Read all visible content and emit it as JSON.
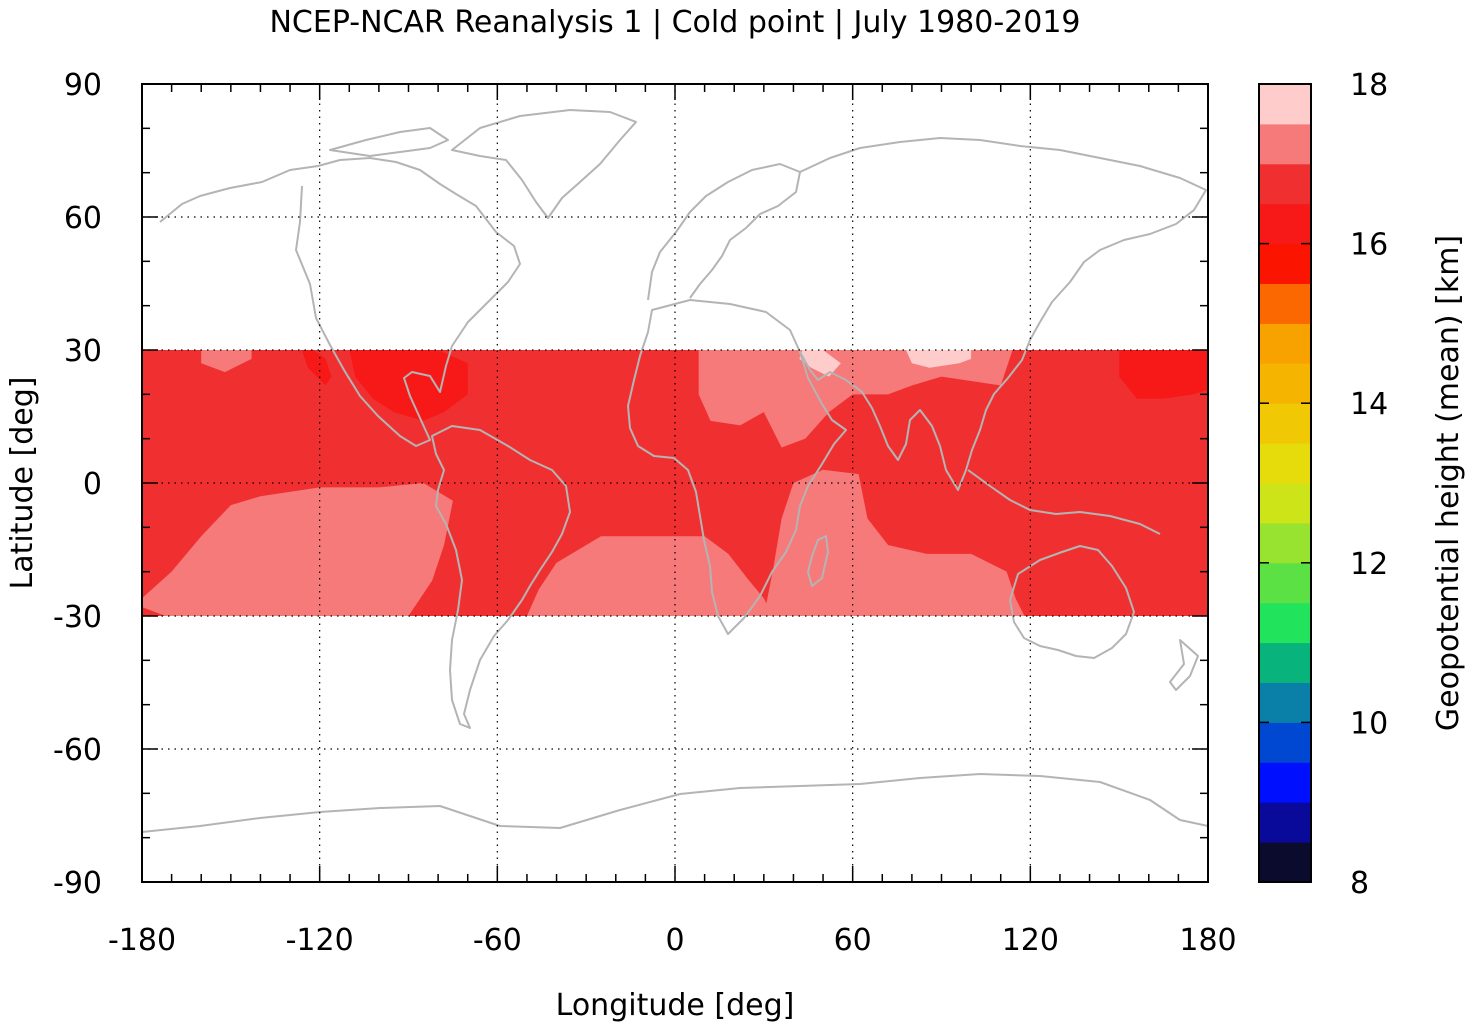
{
  "chart_data": {
    "type": "heatmap",
    "title": "NCEP-NCAR Reanalysis 1 | Cold point | July 1980-2019",
    "xlabel": "Longitude [deg]",
    "ylabel": "Latitude [deg]",
    "xlim": [
      -180,
      180
    ],
    "ylim": [
      -90,
      90
    ],
    "x_ticks": [
      "-180",
      "-120",
      "-60",
      "0",
      "60",
      "120",
      "180"
    ],
    "y_ticks": [
      "90",
      "60",
      "30",
      "0",
      "-30",
      "-60",
      "-90"
    ],
    "grid": true,
    "colorbar": {
      "label": "Geopotential height (mean) [km]",
      "range": [
        8,
        18
      ],
      "ticks": [
        "8",
        "10",
        "12",
        "14",
        "16",
        "18"
      ],
      "levels": [
        {
          "from": 8.0,
          "to": 8.5,
          "color": "#0b0b2e"
        },
        {
          "from": 8.5,
          "to": 9.0,
          "color": "#090a9a"
        },
        {
          "from": 9.0,
          "to": 9.5,
          "color": "#0010ff"
        },
        {
          "from": 9.5,
          "to": 10.0,
          "color": "#0047d1"
        },
        {
          "from": 10.0,
          "to": 10.5,
          "color": "#0a7fa8"
        },
        {
          "from": 10.5,
          "to": 11.0,
          "color": "#09b37c"
        },
        {
          "from": 11.0,
          "to": 11.5,
          "color": "#21e45c"
        },
        {
          "from": 11.5,
          "to": 12.0,
          "color": "#5be144"
        },
        {
          "from": 12.0,
          "to": 12.5,
          "color": "#98e230"
        },
        {
          "from": 12.5,
          "to": 13.0,
          "color": "#cce418"
        },
        {
          "from": 13.0,
          "to": 13.5,
          "color": "#e6db0b"
        },
        {
          "from": 13.5,
          "to": 14.0,
          "color": "#f1c804"
        },
        {
          "from": 14.0,
          "to": 14.5,
          "color": "#f5b400"
        },
        {
          "from": 14.5,
          "to": 15.0,
          "color": "#f8a200"
        },
        {
          "from": 15.0,
          "to": 15.5,
          "color": "#fb6700"
        },
        {
          "from": 15.5,
          "to": 16.0,
          "color": "#fb1500"
        },
        {
          "from": 16.0,
          "to": 16.5,
          "color": "#f71818"
        },
        {
          "from": 16.5,
          "to": 17.0,
          "color": "#f03030"
        },
        {
          "from": 17.0,
          "to": 17.5,
          "color": "#f67a7a"
        },
        {
          "from": 17.5,
          "to": 18.0,
          "color": "#ffcccc"
        }
      ]
    },
    "data_domain": {
      "lat_range": [
        -30,
        30
      ],
      "lon_range": [
        -180,
        180
      ]
    },
    "regions": [
      {
        "name": "background band",
        "value": 16.75,
        "lon": [
          -180,
          180
        ],
        "lat": [
          -30,
          30
        ]
      },
      {
        "name": "South Pacific",
        "value": 17.25,
        "polygon": [
          [
            -180,
            -26
          ],
          [
            -170,
            -20
          ],
          [
            -160,
            -12
          ],
          [
            -150,
            -5
          ],
          [
            -140,
            -3
          ],
          [
            -120,
            -1
          ],
          [
            -100,
            -1
          ],
          [
            -85,
            0
          ],
          [
            -75,
            -4
          ],
          [
            -78,
            -14
          ],
          [
            -82,
            -22
          ],
          [
            -90,
            -30
          ],
          [
            -172,
            -30
          ],
          [
            -180,
            -28
          ]
        ]
      },
      {
        "name": "South Atlantic",
        "value": 17.25,
        "polygon": [
          [
            -50,
            -30
          ],
          [
            -46,
            -24
          ],
          [
            -40,
            -18
          ],
          [
            -25,
            -12
          ],
          [
            -10,
            -12
          ],
          [
            10,
            -12
          ],
          [
            18,
            -16
          ],
          [
            25,
            -22
          ],
          [
            30,
            -26
          ],
          [
            33,
            -30
          ]
        ]
      },
      {
        "name": "Indian Ocean",
        "value": 17.25,
        "polygon": [
          [
            30,
            -30
          ],
          [
            33,
            -20
          ],
          [
            36,
            -8
          ],
          [
            40,
            0
          ],
          [
            50,
            3
          ],
          [
            62,
            2
          ],
          [
            65,
            -8
          ],
          [
            72,
            -14
          ],
          [
            85,
            -16
          ],
          [
            100,
            -16
          ],
          [
            112,
            -20
          ],
          [
            115,
            -26
          ],
          [
            118,
            -30
          ]
        ]
      },
      {
        "name": "North Africa / Asia",
        "value": 17.25,
        "polygon": [
          [
            8,
            30
          ],
          [
            8,
            20
          ],
          [
            12,
            14
          ],
          [
            22,
            13
          ],
          [
            30,
            16
          ],
          [
            36,
            8
          ],
          [
            44,
            10
          ],
          [
            52,
            16
          ],
          [
            60,
            20
          ],
          [
            72,
            20
          ],
          [
            80,
            22
          ],
          [
            90,
            24
          ],
          [
            100,
            23
          ],
          [
            110,
            22
          ],
          [
            112,
            26
          ],
          [
            114,
            30
          ]
        ]
      },
      {
        "name": "Tibet",
        "value": 17.75,
        "polygon": [
          [
            78,
            30
          ],
          [
            80,
            27
          ],
          [
            86,
            26
          ],
          [
            96,
            27
          ],
          [
            100,
            28
          ],
          [
            100,
            30
          ]
        ]
      },
      {
        "name": "Arabia",
        "value": 17.75,
        "polygon": [
          [
            42,
            28
          ],
          [
            46,
            26
          ],
          [
            52,
            24
          ],
          [
            56,
            27
          ],
          [
            50,
            30
          ],
          [
            43,
            30
          ]
        ]
      },
      {
        "name": "Gulf of Mexico / Caribbean",
        "value": 16.25,
        "polygon": [
          [
            -110,
            30
          ],
          [
            -108,
            24
          ],
          [
            -102,
            19
          ],
          [
            -95,
            16
          ],
          [
            -85,
            14
          ],
          [
            -78,
            16
          ],
          [
            -70,
            20
          ],
          [
            -70,
            27
          ],
          [
            -80,
            30
          ]
        ]
      },
      {
        "name": "NE Pacific",
        "value": 16.25,
        "polygon": [
          [
            -122,
            30
          ],
          [
            -118,
            28
          ],
          [
            -116,
            24
          ],
          [
            -118,
            22
          ],
          [
            -124,
            26
          ],
          [
            -126,
            30
          ]
        ]
      },
      {
        "name": "NW Pacific",
        "value": 16.25,
        "polygon": [
          [
            150,
            30
          ],
          [
            150,
            24
          ],
          [
            156,
            19
          ],
          [
            165,
            19
          ],
          [
            175,
            20
          ],
          [
            180,
            21
          ],
          [
            180,
            30
          ]
        ]
      },
      {
        "name": "Hawaii",
        "value": 17.25,
        "polygon": [
          [
            -160,
            30
          ],
          [
            -160,
            27
          ],
          [
            -152,
            25
          ],
          [
            -143,
            28
          ],
          [
            -143,
            30
          ]
        ]
      }
    ]
  }
}
